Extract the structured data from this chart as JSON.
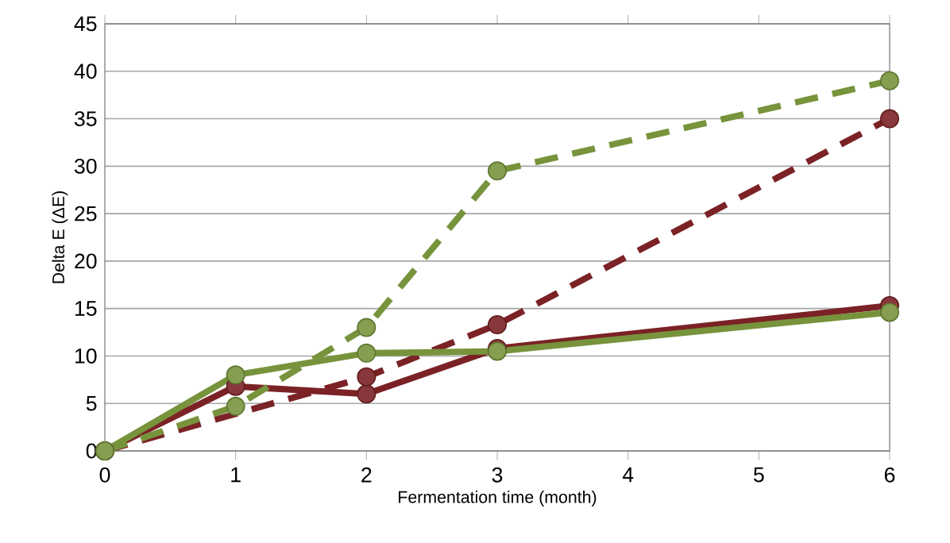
{
  "chart_data": {
    "type": "line",
    "xlabel": "Fermentation time (month)",
    "ylabel": "Delta E (ΔE)",
    "x": [
      0,
      1,
      2,
      3,
      6
    ],
    "xlim": [
      0,
      6
    ],
    "xticks": [
      0,
      1,
      2,
      3,
      4,
      5,
      6
    ],
    "ylim": [
      0,
      45
    ],
    "yticks": [
      0,
      5,
      10,
      15,
      20,
      25,
      30,
      35,
      40,
      45
    ],
    "grid": "y",
    "marker": "circle",
    "series": [
      {
        "color": "#7b2226",
        "line_style": "solid",
        "values": [
          0,
          6.8,
          6,
          10.8,
          15.3
        ]
      },
      {
        "color": "#7b2226",
        "line_style": "dashed",
        "values": [
          0,
          null,
          7.8,
          13.3,
          35
        ]
      },
      {
        "color": "#77933c",
        "line_style": "solid",
        "values": [
          0,
          8,
          10.3,
          10.5,
          14.6
        ]
      },
      {
        "color": "#77933c",
        "line_style": "dashed",
        "values": [
          0,
          4.7,
          13,
          29.5,
          39
        ]
      }
    ]
  }
}
